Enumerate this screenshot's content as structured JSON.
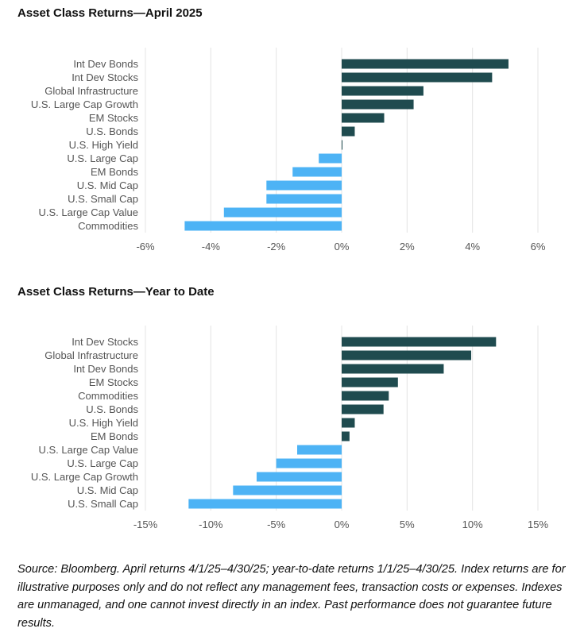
{
  "colors": {
    "positive": "#1f4b4f",
    "negative": "#4db3f5"
  },
  "chart_data": [
    {
      "type": "bar",
      "orientation": "horizontal",
      "title": "Asset Class Returns—April 2025",
      "categories": [
        "Int Dev Bonds",
        "Int Dev Stocks",
        "Global Infrastructure",
        "U.S. Large Cap Growth",
        "EM Stocks",
        "U.S. Bonds",
        "U.S. High Yield",
        "U.S. Large Cap",
        "EM Bonds",
        "U.S. Mid Cap",
        "U.S. Small Cap",
        "U.S. Large Cap Value",
        "Commodities"
      ],
      "values": [
        5.1,
        4.6,
        2.5,
        2.2,
        1.3,
        0.4,
        0.0,
        -0.7,
        -1.5,
        -2.3,
        -2.3,
        -3.6,
        -4.8
      ],
      "xlim": [
        -6,
        6
      ],
      "ticks": [
        -6,
        -4,
        -2,
        0,
        2,
        4,
        6
      ],
      "tick_labels": [
        "-6%",
        "-4%",
        "-2%",
        "0%",
        "2%",
        "4%",
        "6%"
      ],
      "grid": true,
      "legend": "none"
    },
    {
      "type": "bar",
      "orientation": "horizontal",
      "title": "Asset Class Returns—Year to Date",
      "categories": [
        "Int Dev Stocks",
        "Global Infrastructure",
        "Int Dev Bonds",
        "EM Stocks",
        "Commodities",
        "U.S. Bonds",
        "U.S. High Yield",
        "EM Bonds",
        "U.S. Large Cap Value",
        "U.S. Large Cap",
        "U.S. Large Cap Growth",
        "U.S. Mid Cap",
        "U.S. Small Cap"
      ],
      "values": [
        11.8,
        9.9,
        7.8,
        4.3,
        3.6,
        3.2,
        1.0,
        0.6,
        -3.4,
        -5.0,
        -6.5,
        -8.3,
        -11.7
      ],
      "xlim": [
        -15,
        15
      ],
      "ticks": [
        -15,
        -10,
        -5,
        0,
        5,
        10,
        15
      ],
      "tick_labels": [
        "-15%",
        "-10%",
        "-5%",
        "0%",
        "5%",
        "10%",
        "15%"
      ],
      "grid": true,
      "legend": "none"
    }
  ],
  "footnote": "Source: Bloomberg. April returns 4/1/25–4/30/25; year-to-date returns 1/1/25–4/30/25. Index returns are for illustrative purposes only and do not reflect any management fees, transaction costs or expenses. Indexes are unmanaged, and one cannot invest directly in an index. Past performance does not guarantee future results."
}
